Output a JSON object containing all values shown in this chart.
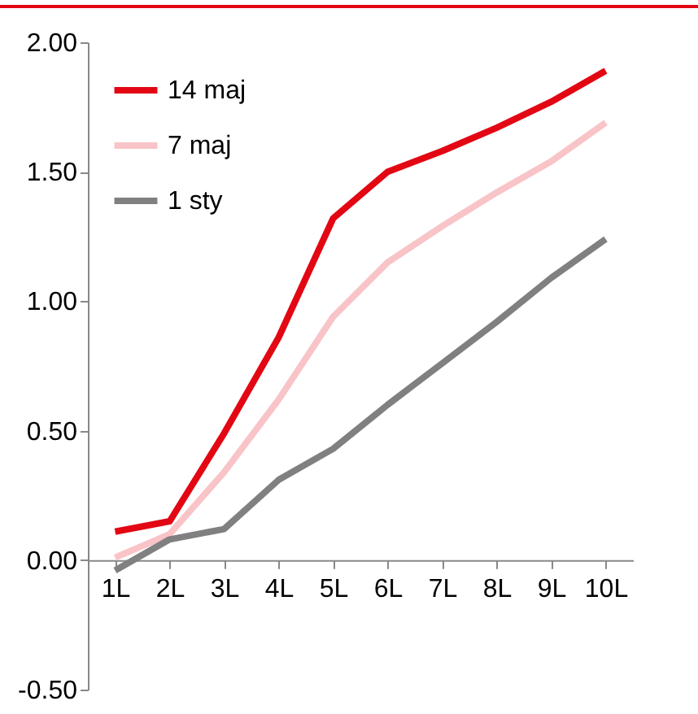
{
  "chart_data": {
    "type": "line",
    "categories": [
      "1L",
      "2L",
      "3L",
      "4L",
      "5L",
      "6L",
      "7L",
      "8L",
      "9L",
      "10L"
    ],
    "series": [
      {
        "name": "14 maj",
        "color": "#e30613",
        "values": [
          0.11,
          0.15,
          0.49,
          0.86,
          1.32,
          1.5,
          1.58,
          1.67,
          1.77,
          1.89
        ]
      },
      {
        "name": "7 maj",
        "color": "#f9c4c7",
        "values": [
          0.01,
          0.1,
          0.34,
          0.62,
          0.94,
          1.15,
          1.29,
          1.42,
          1.54,
          1.69
        ]
      },
      {
        "name": "1 sty",
        "color": "#808080",
        "values": [
          -0.04,
          0.08,
          0.12,
          0.31,
          0.43,
          0.6,
          0.76,
          0.92,
          1.09,
          1.24
        ]
      }
    ],
    "ylim": [
      -0.5,
      2.0
    ],
    "yticks": [
      {
        "value": -0.5,
        "label": "-0.50"
      },
      {
        "value": 0,
        "label": "0.00"
      },
      {
        "value": 0.5,
        "label": "0.50"
      },
      {
        "value": 1,
        "label": "1.00"
      },
      {
        "value": 1.5,
        "label": "1.50"
      },
      {
        "value": 2,
        "label": "2.00"
      }
    ],
    "grid": false,
    "legend": "top left",
    "marker": "none",
    "line_style": "solid"
  }
}
